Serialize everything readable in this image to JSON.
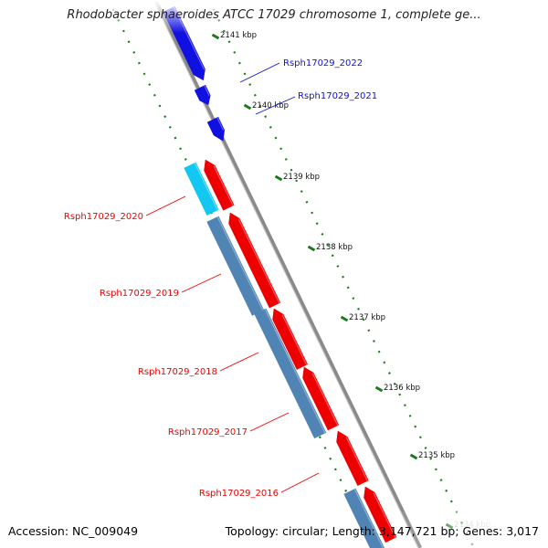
{
  "title": "Rhodobacter sphaeroides ATCC 17029 chromosome 1, complete ge...",
  "footer": {
    "accession": "Accession: NC_009049",
    "topology": "Topology: circular; Length: 3,147,721 bp; Genes: 3,017"
  },
  "scale_ticks": [
    {
      "label": "2141 kbp"
    },
    {
      "label": "2140 kbp"
    },
    {
      "label": "2139 kbp"
    },
    {
      "label": "2138 kbp"
    },
    {
      "label": "2137 kbp"
    },
    {
      "label": "2136 kbp"
    },
    {
      "label": "2135 kbp"
    },
    {
      "label": "2134 kbp"
    }
  ],
  "gene_labels": [
    {
      "label": "Rsph17029_2022",
      "strand": "forward"
    },
    {
      "label": "Rsph17029_2021",
      "strand": "forward"
    },
    {
      "label": "Rsph17029_2020",
      "strand": "reverse"
    },
    {
      "label": "Rsph17029_2019",
      "strand": "reverse"
    },
    {
      "label": "Rsph17029_2018",
      "strand": "reverse"
    },
    {
      "label": "Rsph17029_2017",
      "strand": "reverse"
    },
    {
      "label": "Rsph17029_2016",
      "strand": "reverse"
    }
  ],
  "colors": {
    "forward_gene": "#1010e0",
    "reverse_gene": "#ee0000",
    "cds_segment": "#4f84b5",
    "cds_segment_light": "#12c8f0",
    "backbone": "#888888",
    "tick_marks": "#1a7a1a"
  }
}
